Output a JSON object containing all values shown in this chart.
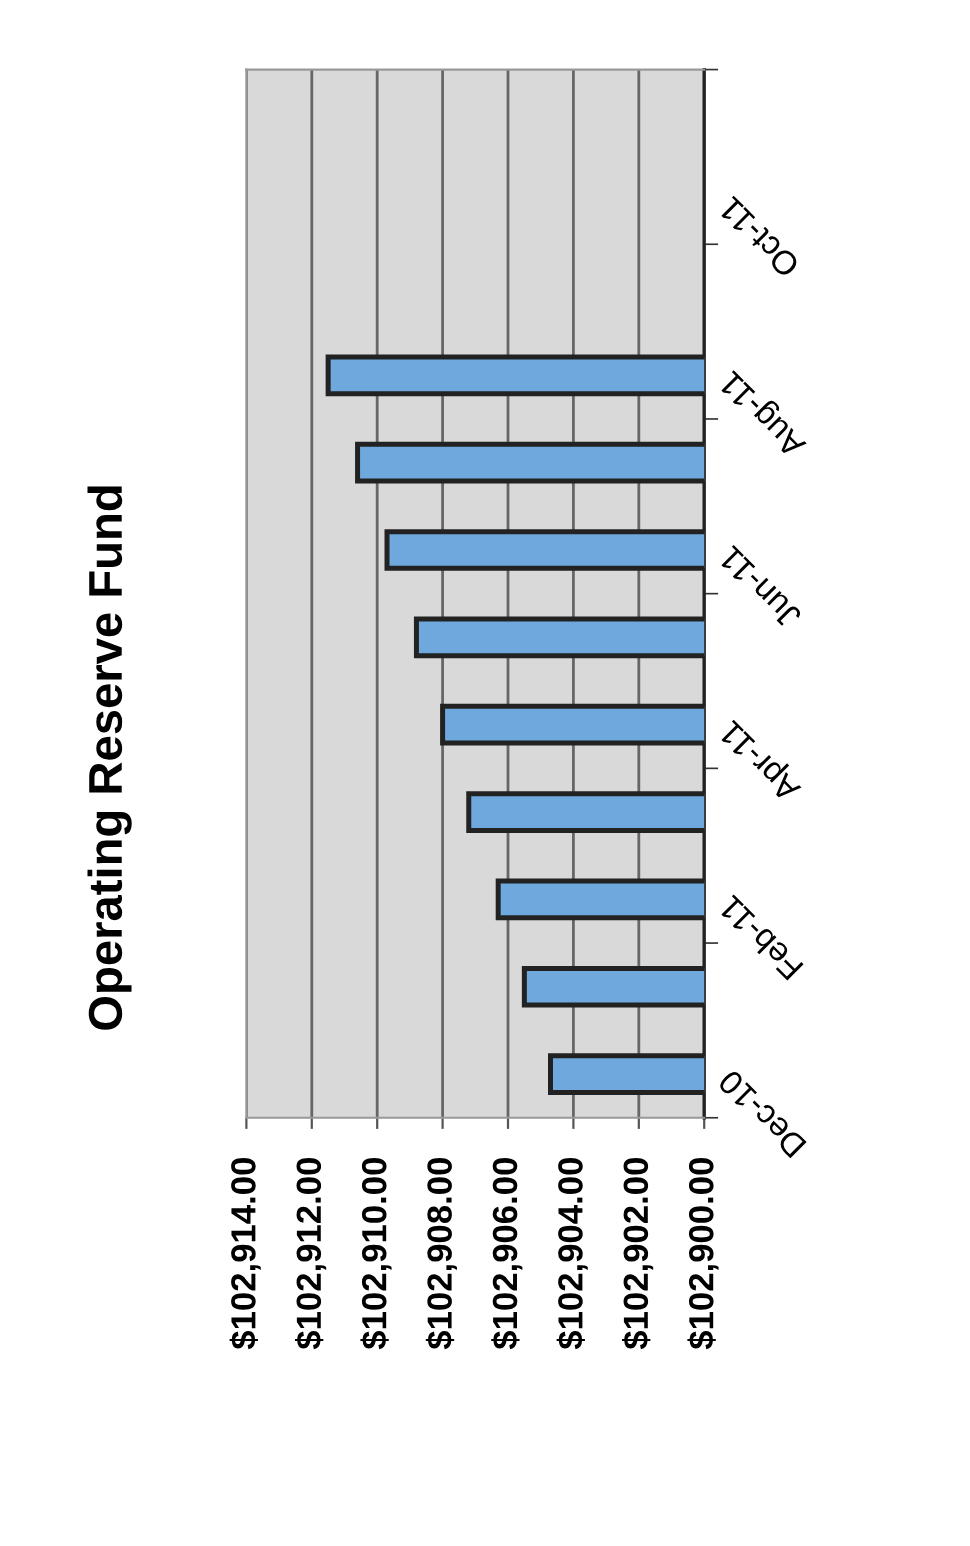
{
  "chart_data": {
    "type": "bar",
    "orientation": "horizontal",
    "title": "Operating Reserve Fund",
    "categories": [
      null,
      "Oct-11",
      null,
      "Aug-11",
      null,
      "Jun-11",
      null,
      "Apr-11",
      null,
      "Feb-11",
      null,
      "Dec-10"
    ],
    "values": [
      null,
      null,
      null,
      102911.5,
      102910.6,
      102909.7,
      102908.8,
      102908.0,
      102907.2,
      102906.3,
      102905.5,
      102904.7
    ],
    "color": "#6fa8dc",
    "xlim": [
      102914,
      102900
    ],
    "xticks": [
      {
        "value": 102914,
        "label": "$102,914.00"
      },
      {
        "value": 102912,
        "label": "$102,912.00"
      },
      {
        "value": 102910,
        "label": "$102,910.00"
      },
      {
        "value": 102908,
        "label": "$102,908.00"
      },
      {
        "value": 102906,
        "label": "$102,906.00"
      },
      {
        "value": 102904,
        "label": "$102,904.00"
      },
      {
        "value": 102902,
        "label": "$102,902.00"
      },
      {
        "value": 102900,
        "label": "$102,900.00"
      }
    ],
    "grid": "x",
    "legend": false
  }
}
